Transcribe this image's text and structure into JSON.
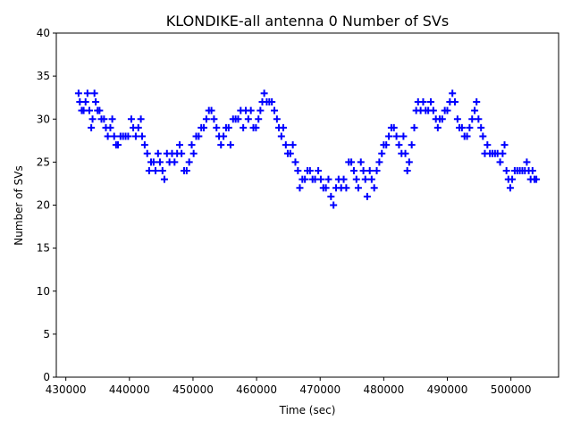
{
  "chart_data": {
    "type": "scatter",
    "title": "KLONDIKE-all antenna 0 Number of SVs",
    "xlabel": "Time (sec)",
    "ylabel": "Number of SVs",
    "xlim": [
      428500,
      507500
    ],
    "ylim": [
      0,
      40
    ],
    "xticks": [
      430000,
      440000,
      450000,
      460000,
      470000,
      480000,
      490000,
      500000
    ],
    "yticks": [
      0,
      5,
      10,
      15,
      20,
      25,
      30,
      35,
      40
    ],
    "marker": "plus",
    "color": "#0000ff",
    "grid": false,
    "series": [
      {
        "points": [
          [
            432000,
            33
          ],
          [
            432200,
            32
          ],
          [
            432500,
            31
          ],
          [
            432800,
            31
          ],
          [
            433100,
            32
          ],
          [
            433400,
            33
          ],
          [
            433700,
            31
          ],
          [
            434000,
            29
          ],
          [
            434200,
            30
          ],
          [
            434500,
            33
          ],
          [
            434700,
            32
          ],
          [
            435000,
            31
          ],
          [
            435300,
            31
          ],
          [
            435600,
            30
          ],
          [
            436000,
            30
          ],
          [
            436300,
            29
          ],
          [
            436600,
            28
          ],
          [
            437000,
            29
          ],
          [
            437300,
            30
          ],
          [
            437600,
            28
          ],
          [
            437900,
            27
          ],
          [
            438200,
            27
          ],
          [
            438600,
            28
          ],
          [
            439000,
            28
          ],
          [
            439400,
            28
          ],
          [
            439800,
            28
          ],
          [
            440300,
            30
          ],
          [
            440600,
            29
          ],
          [
            441000,
            28
          ],
          [
            441400,
            29
          ],
          [
            441800,
            30
          ],
          [
            442000,
            28
          ],
          [
            442400,
            27
          ],
          [
            442800,
            26
          ],
          [
            443100,
            24
          ],
          [
            443400,
            25
          ],
          [
            443800,
            25
          ],
          [
            444100,
            24
          ],
          [
            444500,
            26
          ],
          [
            444800,
            25
          ],
          [
            445200,
            24
          ],
          [
            445500,
            23
          ],
          [
            445900,
            26
          ],
          [
            446300,
            25
          ],
          [
            446700,
            26
          ],
          [
            447100,
            25
          ],
          [
            447500,
            26
          ],
          [
            447900,
            27
          ],
          [
            448200,
            26
          ],
          [
            448600,
            24
          ],
          [
            449000,
            24
          ],
          [
            449400,
            25
          ],
          [
            449800,
            27
          ],
          [
            450100,
            26
          ],
          [
            450500,
            28
          ],
          [
            450900,
            28
          ],
          [
            451300,
            29
          ],
          [
            451700,
            29
          ],
          [
            452100,
            30
          ],
          [
            452500,
            31
          ],
          [
            452900,
            31
          ],
          [
            453300,
            30
          ],
          [
            453700,
            29
          ],
          [
            454100,
            28
          ],
          [
            454400,
            27
          ],
          [
            454800,
            28
          ],
          [
            455200,
            29
          ],
          [
            455600,
            29
          ],
          [
            455900,
            27
          ],
          [
            456300,
            30
          ],
          [
            456700,
            30
          ],
          [
            457100,
            30
          ],
          [
            457500,
            31
          ],
          [
            457900,
            29
          ],
          [
            458300,
            31
          ],
          [
            458700,
            30
          ],
          [
            459100,
            31
          ],
          [
            459500,
            29
          ],
          [
            459900,
            29
          ],
          [
            460300,
            30
          ],
          [
            460600,
            31
          ],
          [
            460900,
            32
          ],
          [
            461200,
            33
          ],
          [
            461600,
            32
          ],
          [
            462000,
            32
          ],
          [
            462400,
            32
          ],
          [
            462800,
            31
          ],
          [
            463200,
            30
          ],
          [
            463500,
            29
          ],
          [
            463900,
            28
          ],
          [
            464200,
            29
          ],
          [
            464600,
            27
          ],
          [
            464900,
            26
          ],
          [
            465300,
            26
          ],
          [
            465700,
            27
          ],
          [
            466100,
            25
          ],
          [
            466500,
            24
          ],
          [
            466800,
            22
          ],
          [
            467200,
            23
          ],
          [
            467600,
            23
          ],
          [
            468000,
            24
          ],
          [
            468400,
            24
          ],
          [
            468800,
            23
          ],
          [
            469200,
            23
          ],
          [
            469700,
            24
          ],
          [
            470100,
            23
          ],
          [
            470500,
            22
          ],
          [
            470900,
            22
          ],
          [
            471300,
            23
          ],
          [
            471700,
            21
          ],
          [
            472100,
            20
          ],
          [
            472500,
            22
          ],
          [
            472900,
            23
          ],
          [
            473300,
            22
          ],
          [
            473700,
            23
          ],
          [
            474100,
            22
          ],
          [
            474500,
            25
          ],
          [
            474900,
            25
          ],
          [
            475300,
            24
          ],
          [
            475700,
            23
          ],
          [
            476000,
            22
          ],
          [
            476400,
            25
          ],
          [
            476800,
            24
          ],
          [
            477100,
            23
          ],
          [
            477400,
            21
          ],
          [
            477800,
            24
          ],
          [
            478100,
            23
          ],
          [
            478500,
            22
          ],
          [
            478900,
            24
          ],
          [
            479300,
            25
          ],
          [
            479700,
            26
          ],
          [
            480000,
            27
          ],
          [
            480400,
            27
          ],
          [
            480800,
            28
          ],
          [
            481200,
            29
          ],
          [
            481600,
            29
          ],
          [
            482000,
            28
          ],
          [
            482400,
            27
          ],
          [
            482800,
            26
          ],
          [
            483100,
            28
          ],
          [
            483400,
            26
          ],
          [
            483700,
            24
          ],
          [
            484000,
            25
          ],
          [
            484400,
            27
          ],
          [
            484800,
            29
          ],
          [
            485100,
            31
          ],
          [
            485400,
            32
          ],
          [
            485800,
            31
          ],
          [
            486200,
            32
          ],
          [
            486600,
            31
          ],
          [
            487000,
            31
          ],
          [
            487400,
            32
          ],
          [
            487800,
            31
          ],
          [
            488200,
            30
          ],
          [
            488500,
            29
          ],
          [
            488800,
            30
          ],
          [
            489200,
            30
          ],
          [
            489600,
            31
          ],
          [
            490000,
            31
          ],
          [
            490400,
            32
          ],
          [
            490800,
            33
          ],
          [
            491200,
            32
          ],
          [
            491600,
            30
          ],
          [
            491900,
            29
          ],
          [
            492300,
            29
          ],
          [
            492700,
            28
          ],
          [
            493100,
            28
          ],
          [
            493500,
            29
          ],
          [
            493900,
            30
          ],
          [
            494300,
            31
          ],
          [
            494600,
            32
          ],
          [
            494900,
            30
          ],
          [
            495300,
            29
          ],
          [
            495600,
            28
          ],
          [
            495900,
            26
          ],
          [
            496300,
            27
          ],
          [
            496700,
            26
          ],
          [
            497100,
            26
          ],
          [
            497500,
            26
          ],
          [
            497900,
            26
          ],
          [
            498300,
            25
          ],
          [
            498700,
            26
          ],
          [
            499000,
            27
          ],
          [
            499300,
            24
          ],
          [
            499600,
            23
          ],
          [
            499900,
            22
          ],
          [
            500200,
            23
          ],
          [
            500600,
            24
          ],
          [
            501000,
            24
          ],
          [
            501400,
            24
          ],
          [
            501800,
            24
          ],
          [
            502200,
            24
          ],
          [
            502500,
            25
          ],
          [
            502800,
            24
          ],
          [
            503100,
            23
          ],
          [
            503400,
            24
          ],
          [
            503700,
            23
          ],
          [
            504000,
            23
          ]
        ]
      }
    ]
  }
}
